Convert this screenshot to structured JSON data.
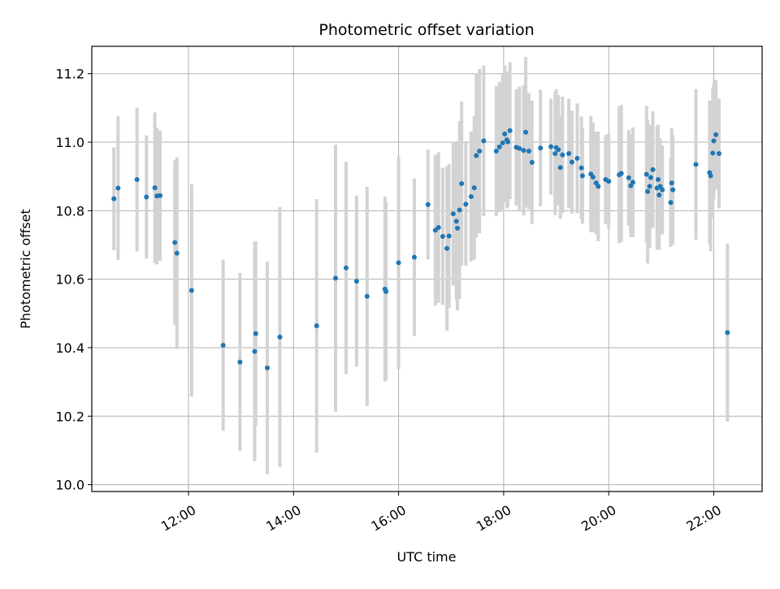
{
  "chart_data": {
    "type": "scatter",
    "title": "Photometric offset variation",
    "xlabel": "UTC time",
    "ylabel": "Photometric offset",
    "x_unit": "hours UTC",
    "xlim": [
      10.16,
      22.92
    ],
    "ylim": [
      9.98,
      11.28
    ],
    "x_ticks": [
      {
        "value": 12,
        "label": "12:00"
      },
      {
        "value": 14,
        "label": "14:00"
      },
      {
        "value": 16,
        "label": "16:00"
      },
      {
        "value": 18,
        "label": "18:00"
      },
      {
        "value": 20,
        "label": "20:00"
      },
      {
        "value": 22,
        "label": "22:00"
      }
    ],
    "y_ticks": [
      {
        "value": 10.0,
        "label": "10.0"
      },
      {
        "value": 10.2,
        "label": "10.2"
      },
      {
        "value": 10.4,
        "label": "10.4"
      },
      {
        "value": 10.6,
        "label": "10.6"
      },
      {
        "value": 10.8,
        "label": "10.8"
      },
      {
        "value": 11.0,
        "label": "11.0"
      },
      {
        "value": 11.2,
        "label": "11.2"
      }
    ],
    "grid": true,
    "colors": {
      "point": "#1f77b4",
      "errorbar": "#d3d3d3",
      "grid": "#b0b0b0",
      "axes": "#000000"
    },
    "series": [
      {
        "marker": "point-with-errorbar",
        "x": [
          10.58,
          10.66,
          11.02,
          11.2,
          11.36,
          11.4,
          11.46,
          11.74,
          11.78,
          12.06,
          12.66,
          12.98,
          13.26,
          13.28,
          13.5,
          13.74,
          14.44,
          14.8,
          15.0,
          15.2,
          15.4,
          15.74,
          15.76,
          16.0,
          16.3,
          16.56,
          16.7,
          16.76,
          16.84,
          16.92,
          16.96,
          17.04,
          17.1,
          17.12,
          17.16,
          17.2,
          17.28,
          17.38,
          17.44,
          17.48,
          17.54,
          17.62,
          17.86,
          17.92,
          17.98,
          18.02,
          18.06,
          18.08,
          18.12,
          18.24,
          18.3,
          18.38,
          18.42,
          18.48,
          18.54,
          18.7,
          18.9,
          18.98,
          19.0,
          19.04,
          19.08,
          19.12,
          19.24,
          19.3,
          19.4,
          19.48,
          19.5,
          19.66,
          19.7,
          19.76,
          19.8,
          19.94,
          20.0,
          20.2,
          20.24,
          20.38,
          20.42,
          20.46,
          20.72,
          20.74,
          20.78,
          20.8,
          20.84,
          20.92,
          20.94,
          20.96,
          20.98,
          21.02,
          21.18,
          21.2,
          21.22,
          21.66,
          21.92,
          21.94,
          21.98,
          22.0,
          22.04,
          22.1,
          22.26
        ],
        "y": [
          10.835,
          10.866,
          10.891,
          10.84,
          10.867,
          10.843,
          10.844,
          10.707,
          10.676,
          10.567,
          10.407,
          10.358,
          10.389,
          10.441,
          10.341,
          10.431,
          10.464,
          10.603,
          10.633,
          10.594,
          10.55,
          10.571,
          10.564,
          10.648,
          10.664,
          10.818,
          10.743,
          10.751,
          10.725,
          10.69,
          10.726,
          10.791,
          10.769,
          10.749,
          10.802,
          10.879,
          10.819,
          10.841,
          10.867,
          10.961,
          10.974,
          11.004,
          10.974,
          10.986,
          10.998,
          11.024,
          11.007,
          11.001,
          11.034,
          10.985,
          10.982,
          10.976,
          11.029,
          10.974,
          10.941,
          10.983,
          10.987,
          10.967,
          10.984,
          10.978,
          10.926,
          10.963,
          10.967,
          10.942,
          10.953,
          10.925,
          10.902,
          10.907,
          10.898,
          10.881,
          10.871,
          10.891,
          10.886,
          10.905,
          10.909,
          10.896,
          10.873,
          10.883,
          10.906,
          10.856,
          10.871,
          10.897,
          10.92,
          10.866,
          10.891,
          10.846,
          10.871,
          10.861,
          10.824,
          10.881,
          10.861,
          10.935,
          10.911,
          10.902,
          10.968,
          11.004,
          11.022,
          10.967,
          10.444
        ],
        "err": [
          0.15,
          0.21,
          0.21,
          0.18,
          0.22,
          0.2,
          0.19,
          0.24,
          0.28,
          0.31,
          0.25,
          0.26,
          0.32,
          0.27,
          0.31,
          0.38,
          0.37,
          0.39,
          0.31,
          0.25,
          0.32,
          0.27,
          0.26,
          0.31,
          0.23,
          0.16,
          0.22,
          0.22,
          0.2,
          0.24,
          0.21,
          0.21,
          0.23,
          0.24,
          0.26,
          0.24,
          0.18,
          0.19,
          0.21,
          0.24,
          0.24,
          0.22,
          0.19,
          0.19,
          0.2,
          0.2,
          0.2,
          0.19,
          0.2,
          0.17,
          0.18,
          0.19,
          0.22,
          0.17,
          0.18,
          0.17,
          0.14,
          0.18,
          0.17,
          0.16,
          0.15,
          0.17,
          0.16,
          0.15,
          0.16,
          0.15,
          0.14,
          0.17,
          0.16,
          0.15,
          0.16,
          0.13,
          0.14,
          0.2,
          0.2,
          0.14,
          0.15,
          0.16,
          0.2,
          0.21,
          0.18,
          0.15,
          0.17,
          0.18,
          0.16,
          0.16,
          0.14,
          0.13,
          0.13,
          0.16,
          0.16,
          0.22,
          0.21,
          0.22,
          0.19,
          0.17,
          0.16,
          0.16,
          0.26
        ]
      }
    ]
  }
}
